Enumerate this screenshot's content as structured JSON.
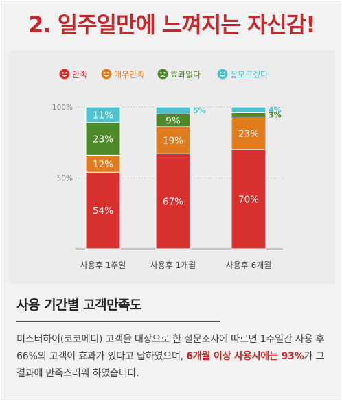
{
  "headline": "2. 일주일만에 느껴지는 자신감!",
  "colors": {
    "satisfied": "#d8302f",
    "very_satisfied": "#e07c1d",
    "not_effective": "#4f8a2a",
    "unknown": "#4ec3cf",
    "headline": "#c8282b"
  },
  "chart_data": {
    "type": "bar",
    "stacked": true,
    "categories": [
      "사용후 1주일",
      "사용후 1개월",
      "사용후 6개월"
    ],
    "series": [
      {
        "name": "만족",
        "color": "#d8302f",
        "icon": "smile-face-icon",
        "values": [
          54,
          67,
          70
        ],
        "labels": [
          "54%",
          "67%",
          "70%"
        ]
      },
      {
        "name": "매우만족",
        "color": "#e07c1d",
        "icon": "happy-face-icon",
        "values": [
          12,
          19,
          23
        ],
        "labels": [
          "12%",
          "19%",
          "23%"
        ]
      },
      {
        "name": "효과없다",
        "color": "#4f8a2a",
        "icon": "sad-face-icon",
        "values": [
          23,
          9,
          3
        ],
        "labels": [
          "23%",
          "9%",
          "3%"
        ]
      },
      {
        "name": "잘모르겠다",
        "color": "#4ec3cf",
        "icon": "confused-face-icon",
        "values": [
          11,
          5,
          4
        ],
        "labels": [
          "11%",
          "5%",
          "4%"
        ]
      }
    ],
    "yticks": [
      "100%",
      "50%"
    ],
    "ytick_values": [
      100,
      50
    ],
    "ylim": [
      0,
      100
    ],
    "legend_position": "top",
    "grid": true
  },
  "section": {
    "title": "사용 기간별 고객만족도",
    "desc_part1": "미스터하이(코코메디) 고객을 대상으로 한 설문조사에 따르면 1주일간 사용 후 66%의 고객이 효과가 있다고 답하였으며, ",
    "desc_highlight": "6개월 이상 사용시에는 93%",
    "desc_part2": "가 그 결과에 만족스러워 하였습니다."
  }
}
